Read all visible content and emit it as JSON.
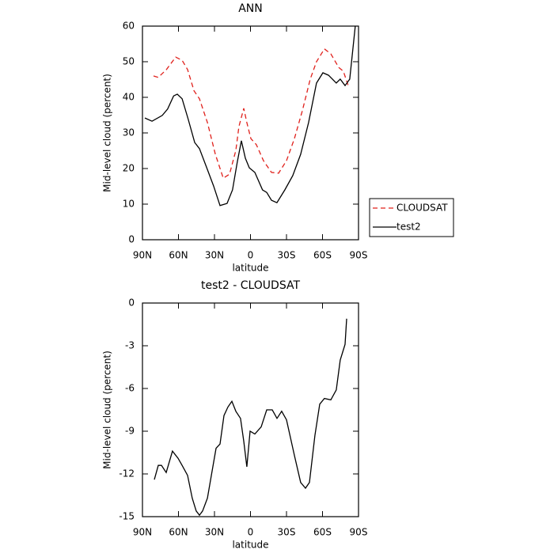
{
  "chart_data": [
    {
      "type": "line",
      "title": "ANN",
      "x_label": "latitude",
      "y_label": "Mid-level cloud (percent)",
      "xlim": [
        90,
        -90
      ],
      "ylim": [
        0,
        60
      ],
      "xticks": [
        {
          "value": 90,
          "label": "90N"
        },
        {
          "value": 60,
          "label": "60N"
        },
        {
          "value": 30,
          "label": "30N"
        },
        0,
        {
          "value": -30,
          "label": "30S"
        },
        {
          "value": -60,
          "label": "60S"
        },
        {
          "value": -90,
          "label": "90S"
        }
      ],
      "yticks": [
        0,
        10,
        20,
        30,
        40,
        50,
        60
      ],
      "legend": "right",
      "series": [
        {
          "name": "CLOUDSAT",
          "color": "#e0201b",
          "line_style": "dashed",
          "x": [
            80.8,
            76.8,
            70,
            62.3,
            57,
            52.4,
            47,
            42.5,
            35.9,
            29.3,
            22.7,
            17.5,
            12.2,
            9.6,
            5.6,
            3,
            -0.3,
            -4.9,
            -10.8,
            -17.5,
            -23.4,
            -30,
            -36.6,
            -43.2,
            -49.8,
            -55,
            -61.6,
            -66.9,
            -73.5,
            -77.4,
            -81.4
          ],
          "values": [
            46,
            45.6,
            47.8,
            51.3,
            50.4,
            47.8,
            41.8,
            39.6,
            32.9,
            24,
            17.3,
            18.4,
            25.1,
            31.8,
            36.9,
            32.9,
            28.4,
            26.7,
            22.2,
            18.9,
            18.7,
            22.2,
            28.4,
            36.2,
            45.1,
            50,
            53.6,
            52.2,
            48.4,
            47.3,
            43.3
          ]
        },
        {
          "name": "test2",
          "color": "#000000",
          "line_style": "solid",
          "x": [
            88,
            82,
            73.5,
            69,
            64,
            61,
            57,
            52,
            46.5,
            42.5,
            37,
            30.7,
            25.4,
            19.5,
            15,
            11,
            7.6,
            4.3,
            1,
            -3.6,
            -10,
            -13.5,
            -17.5,
            -22,
            -28.6,
            -35.2,
            -41.8,
            -48.4,
            -55,
            -60.3,
            -65,
            -71.5,
            -74.8,
            -78.8,
            -82.7,
            -87.3
          ],
          "values": [
            34.2,
            33.3,
            34.9,
            36.7,
            40.4,
            40.9,
            39.6,
            34,
            27.3,
            25.6,
            20.7,
            15.1,
            9.6,
            10.2,
            14,
            21.8,
            27.8,
            22.9,
            20.2,
            18.9,
            14,
            13.3,
            11.1,
            10.4,
            14,
            18,
            24,
            32.9,
            44,
            46.9,
            46.2,
            44,
            45.1,
            43.3,
            45.1,
            60
          ]
        }
      ]
    },
    {
      "type": "line",
      "title": "test2 - CLOUDSAT",
      "x_label": "latitude",
      "y_label": "Mid-level cloud (percent)",
      "xlim": [
        90,
        -90
      ],
      "ylim": [
        -15,
        0
      ],
      "xticks": [
        {
          "value": 90,
          "label": "90N"
        },
        {
          "value": 60,
          "label": "60N"
        },
        {
          "value": 30,
          "label": "30N"
        },
        0,
        {
          "value": -30,
          "label": "30S"
        },
        {
          "value": -60,
          "label": "60S"
        },
        {
          "value": -90,
          "label": "90S"
        }
      ],
      "yticks": [
        -15,
        -12,
        -9,
        -6,
        -3,
        0
      ],
      "series": [
        {
          "color": "#000000",
          "line_style": "solid",
          "x": [
            80.1,
            76.8,
            74.2,
            70.2,
            65,
            60.3,
            57,
            52.4,
            48.5,
            45.2,
            42.5,
            39.9,
            35.9,
            32,
            28.7,
            25.4,
            22.1,
            18.8,
            15.5,
            12.2,
            8.3,
            5.6,
            3,
            0.3,
            -3.6,
            -8.9,
            -13.5,
            -18.1,
            -22.1,
            -26,
            -30,
            -36.6,
            -41.8,
            -45.8,
            -49.1,
            -53.7,
            -57.7,
            -61.6,
            -66.9,
            -71.5,
            -74.8,
            -78.8,
            -80.1
          ],
          "values": [
            -12.4,
            -11.4,
            -11.4,
            -11.9,
            -10.4,
            -10.9,
            -11.4,
            -12.1,
            -13.7,
            -14.6,
            -14.9,
            -14.6,
            -13.7,
            -11.8,
            -10.2,
            -9.9,
            -7.9,
            -7.3,
            -6.9,
            -7.6,
            -8.1,
            -9.7,
            -11.5,
            -9,
            -9.2,
            -8.7,
            -7.5,
            -7.5,
            -8.1,
            -7.6,
            -8.2,
            -10.7,
            -12.6,
            -13,
            -12.6,
            -9.3,
            -7.1,
            -6.7,
            -6.8,
            -6.1,
            -4,
            -2.9,
            -1.1
          ]
        }
      ]
    }
  ]
}
